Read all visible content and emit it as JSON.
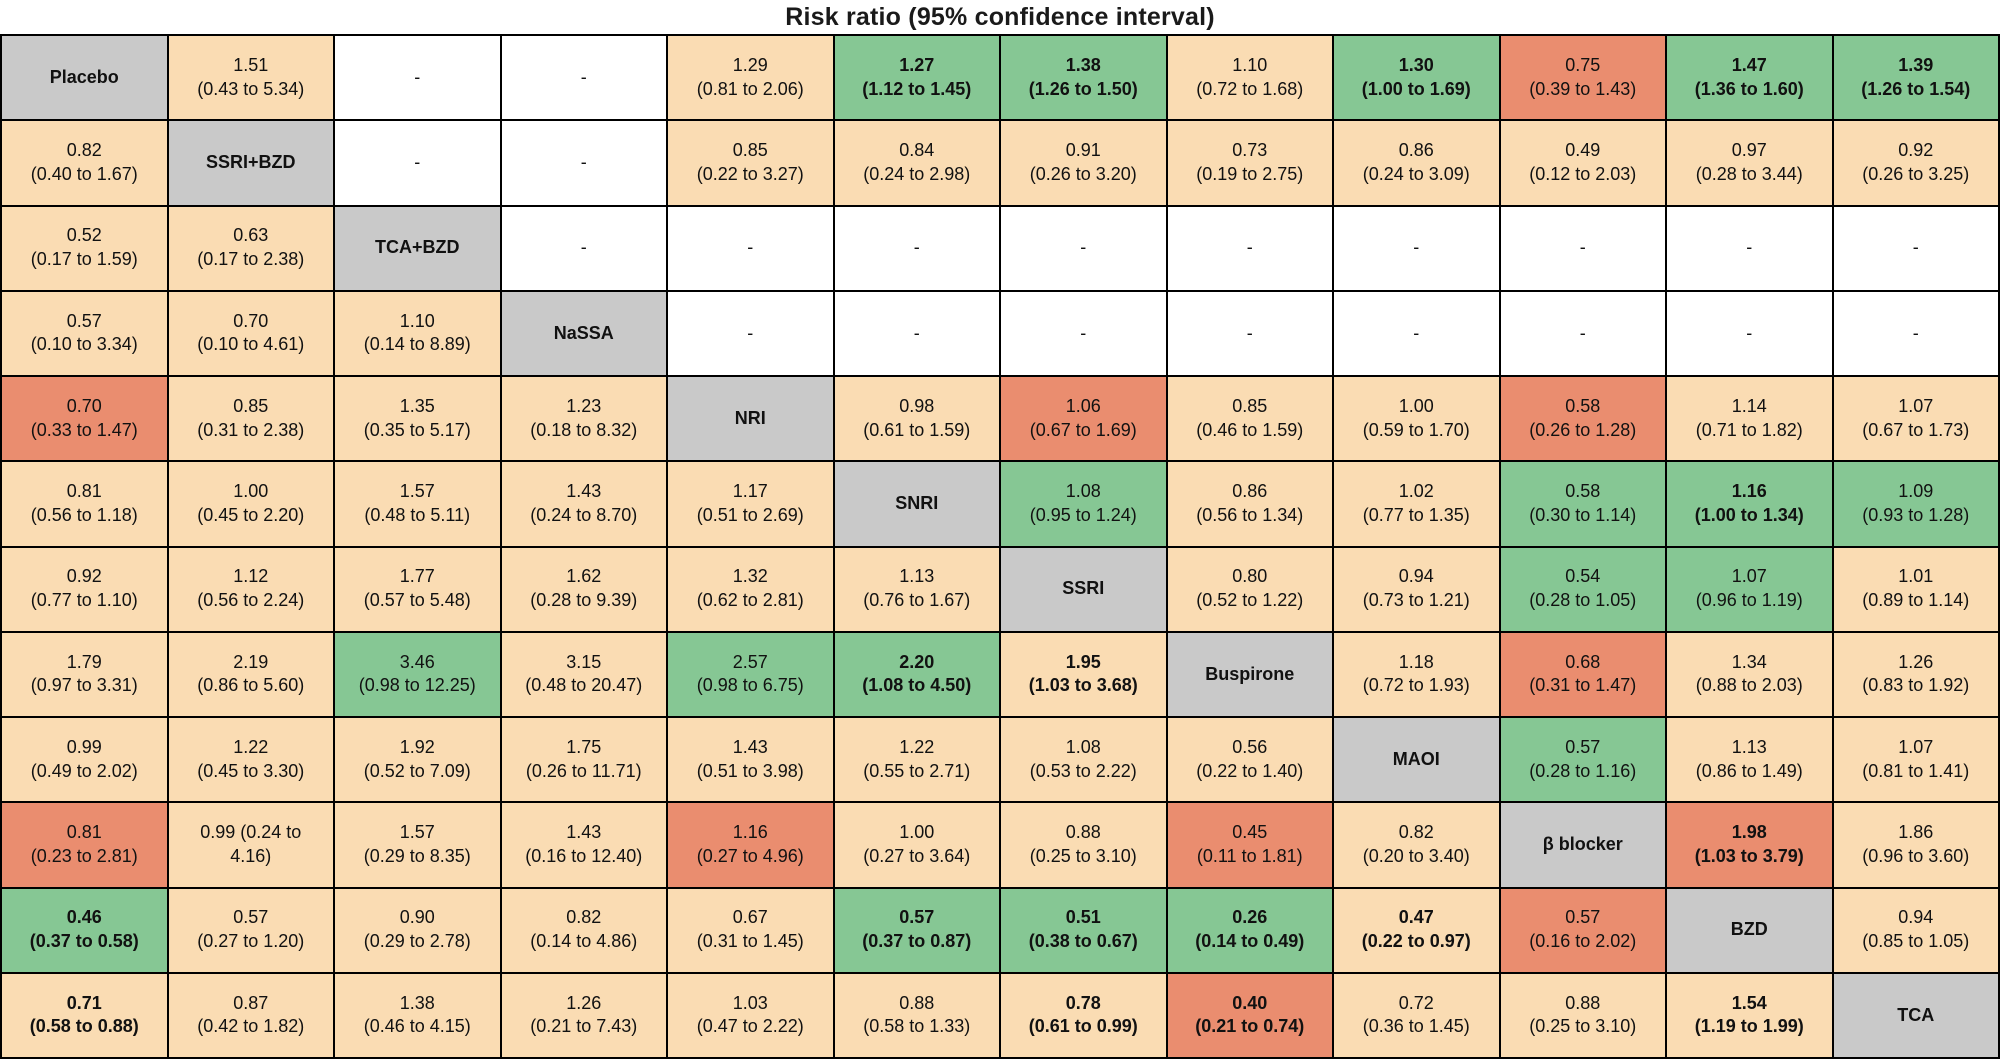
{
  "title": "Risk ratio (95% confidence interval)",
  "colors": {
    "peach": "#fadcb3",
    "green": "#86c794",
    "salmon": "#ea8d6f",
    "gray": "#c9c9c9",
    "white": "#ffffff",
    "border": "#000000"
  },
  "chart_data": {
    "type": "heatmap",
    "title": "Risk ratio (95% confidence interval)",
    "treatments": [
      "Placebo",
      "SSRI+BZD",
      "TCA+BZD",
      "NaSSA",
      "NRI",
      "SNRI",
      "SSRI",
      "Buspirone",
      "MAOI",
      "β blocker",
      "BZD",
      "TCA"
    ],
    "cell_color_classes": [
      "peach",
      "green",
      "salmon",
      "white",
      "gray"
    ],
    "rows": [
      [
        {
          "treatment": "Placebo"
        },
        {
          "rr": "1.51",
          "ci": "0.43 to 5.34",
          "color": "peach"
        },
        {
          "dash": true
        },
        {
          "dash": true
        },
        {
          "rr": "1.29",
          "ci": "0.81 to 2.06",
          "color": "peach"
        },
        {
          "rr": "1.27",
          "ci": "1.12 to 1.45",
          "color": "green",
          "bold": true
        },
        {
          "rr": "1.38",
          "ci": "1.26 to 1.50",
          "color": "green",
          "bold": true
        },
        {
          "rr": "1.10",
          "ci": "0.72 to 1.68",
          "color": "peach"
        },
        {
          "rr": "1.30",
          "ci": "1.00 to 1.69",
          "color": "green",
          "bold": true
        },
        {
          "rr": "0.75",
          "ci": "0.39 to 1.43",
          "color": "salmon"
        },
        {
          "rr": "1.47",
          "ci": "1.36 to 1.60",
          "color": "green",
          "bold": true
        },
        {
          "rr": "1.39",
          "ci": "1.26 to 1.54",
          "color": "green",
          "bold": true
        }
      ],
      [
        {
          "rr": "0.82",
          "ci": "0.40 to 1.67",
          "color": "peach"
        },
        {
          "treatment": "SSRI+BZD"
        },
        {
          "dash": true
        },
        {
          "dash": true
        },
        {
          "rr": "0.85",
          "ci": "0.22 to 3.27",
          "color": "peach"
        },
        {
          "rr": "0.84",
          "ci": "0.24 to 2.98",
          "color": "peach"
        },
        {
          "rr": "0.91",
          "ci": "0.26 to 3.20",
          "color": "peach"
        },
        {
          "rr": "0.73",
          "ci": "0.19 to 2.75",
          "color": "peach"
        },
        {
          "rr": "0.86",
          "ci": "0.24 to 3.09",
          "color": "peach"
        },
        {
          "rr": "0.49",
          "ci": "0.12 to 2.03",
          "color": "peach"
        },
        {
          "rr": "0.97",
          "ci": "0.28 to 3.44",
          "color": "peach"
        },
        {
          "rr": "0.92",
          "ci": "0.26 to 3.25",
          "color": "peach"
        }
      ],
      [
        {
          "rr": "0.52",
          "ci": "0.17 to 1.59",
          "color": "peach"
        },
        {
          "rr": "0.63",
          "ci": "0.17 to 2.38",
          "color": "peach"
        },
        {
          "treatment": "TCA+BZD"
        },
        {
          "dash": true
        },
        {
          "dash": true
        },
        {
          "dash": true
        },
        {
          "dash": true
        },
        {
          "dash": true
        },
        {
          "dash": true
        },
        {
          "dash": true
        },
        {
          "dash": true
        },
        {
          "dash": true
        }
      ],
      [
        {
          "rr": "0.57",
          "ci": "0.10 to 3.34",
          "color": "peach"
        },
        {
          "rr": "0.70",
          "ci": "0.10 to 4.61",
          "color": "peach"
        },
        {
          "rr": "1.10",
          "ci": "0.14 to 8.89",
          "color": "peach"
        },
        {
          "treatment": "NaSSA"
        },
        {
          "dash": true
        },
        {
          "dash": true
        },
        {
          "dash": true
        },
        {
          "dash": true
        },
        {
          "dash": true
        },
        {
          "dash": true
        },
        {
          "dash": true
        },
        {
          "dash": true
        }
      ],
      [
        {
          "rr": "0.70",
          "ci": "0.33 to 1.47",
          "color": "salmon"
        },
        {
          "rr": "0.85",
          "ci": "0.31 to 2.38",
          "color": "peach"
        },
        {
          "rr": "1.35",
          "ci": "0.35 to 5.17",
          "color": "peach"
        },
        {
          "rr": "1.23",
          "ci": "0.18 to 8.32",
          "color": "peach"
        },
        {
          "treatment": "NRI"
        },
        {
          "rr": "0.98",
          "ci": "0.61 to 1.59",
          "color": "peach"
        },
        {
          "rr": "1.06",
          "ci": "0.67 to 1.69",
          "color": "salmon"
        },
        {
          "rr": "0.85",
          "ci": "0.46 to 1.59",
          "color": "peach"
        },
        {
          "rr": "1.00",
          "ci": "0.59 to 1.70",
          "color": "peach"
        },
        {
          "rr": "0.58",
          "ci": "0.26 to 1.28",
          "color": "salmon"
        },
        {
          "rr": "1.14",
          "ci": "0.71 to 1.82",
          "color": "peach"
        },
        {
          "rr": "1.07",
          "ci": "0.67 to 1.73",
          "color": "peach"
        }
      ],
      [
        {
          "rr": "0.81",
          "ci": "0.56 to 1.18",
          "color": "peach"
        },
        {
          "rr": "1.00",
          "ci": "0.45 to 2.20",
          "color": "peach"
        },
        {
          "rr": "1.57",
          "ci": "0.48 to 5.11",
          "color": "peach"
        },
        {
          "rr": "1.43",
          "ci": "0.24 to 8.70",
          "color": "peach"
        },
        {
          "rr": "1.17",
          "ci": "0.51 to 2.69",
          "color": "peach"
        },
        {
          "treatment": "SNRI"
        },
        {
          "rr": "1.08",
          "ci": "0.95 to 1.24",
          "color": "green"
        },
        {
          "rr": "0.86",
          "ci": "0.56 to 1.34",
          "color": "peach"
        },
        {
          "rr": "1.02",
          "ci": "0.77 to 1.35",
          "color": "peach"
        },
        {
          "rr": "0.58",
          "ci": "0.30 to 1.14",
          "color": "green"
        },
        {
          "rr": "1.16",
          "ci": "1.00 to 1.34",
          "color": "green",
          "bold": true
        },
        {
          "rr": "1.09",
          "ci": "0.93 to 1.28",
          "color": "green"
        }
      ],
      [
        {
          "rr": "0.92",
          "ci": "0.77 to 1.10",
          "color": "peach"
        },
        {
          "rr": "1.12",
          "ci": "0.56 to 2.24",
          "color": "peach"
        },
        {
          "rr": "1.77",
          "ci": "0.57 to 5.48",
          "color": "peach"
        },
        {
          "rr": "1.62",
          "ci": "0.28 to 9.39",
          "color": "peach"
        },
        {
          "rr": "1.32",
          "ci": "0.62 to 2.81",
          "color": "peach"
        },
        {
          "rr": "1.13",
          "ci": "0.76 to 1.67",
          "color": "peach"
        },
        {
          "treatment": "SSRI"
        },
        {
          "rr": "0.80",
          "ci": "0.52 to 1.22",
          "color": "peach"
        },
        {
          "rr": "0.94",
          "ci": "0.73 to 1.21",
          "color": "peach"
        },
        {
          "rr": "0.54",
          "ci": "0.28 to 1.05",
          "color": "green"
        },
        {
          "rr": "1.07",
          "ci": "0.96 to 1.19",
          "color": "green"
        },
        {
          "rr": "1.01",
          "ci": "0.89 to 1.14",
          "color": "peach"
        }
      ],
      [
        {
          "rr": "1.79",
          "ci": "0.97 to 3.31",
          "color": "peach"
        },
        {
          "rr": "2.19",
          "ci": "0.86 to 5.60",
          "color": "peach"
        },
        {
          "rr": "3.46",
          "ci": "0.98 to 12.25",
          "color": "green"
        },
        {
          "rr": "3.15",
          "ci": "0.48 to 20.47",
          "color": "peach"
        },
        {
          "rr": "2.57",
          "ci": "0.98 to 6.75",
          "color": "green"
        },
        {
          "rr": "2.20",
          "ci": "1.08 to 4.50",
          "color": "green",
          "bold": true
        },
        {
          "rr": "1.95",
          "ci": "1.03 to 3.68",
          "color": "peach",
          "bold": true
        },
        {
          "treatment": "Buspirone"
        },
        {
          "rr": "1.18",
          "ci": "0.72 to 1.93",
          "color": "peach"
        },
        {
          "rr": "0.68",
          "ci": "0.31 to 1.47",
          "color": "salmon"
        },
        {
          "rr": "1.34",
          "ci": "0.88 to 2.03",
          "color": "peach"
        },
        {
          "rr": "1.26",
          "ci": "0.83 to 1.92",
          "color": "peach"
        }
      ],
      [
        {
          "rr": "0.99",
          "ci": "0.49 to 2.02",
          "color": "peach"
        },
        {
          "rr": "1.22",
          "ci": "0.45 to 3.30",
          "color": "peach"
        },
        {
          "rr": "1.92",
          "ci": "0.52 to 7.09",
          "color": "peach"
        },
        {
          "rr": "1.75",
          "ci": "0.26 to 11.71",
          "color": "peach"
        },
        {
          "rr": "1.43",
          "ci": "0.51 to 3.98",
          "color": "peach"
        },
        {
          "rr": "1.22",
          "ci": "0.55 to 2.71",
          "color": "peach"
        },
        {
          "rr": "1.08",
          "ci": "0.53 to 2.22",
          "color": "peach"
        },
        {
          "rr": "0.56",
          "ci": "0.22 to 1.40",
          "color": "peach"
        },
        {
          "treatment": "MAOI"
        },
        {
          "rr": "0.57",
          "ci": "0.28 to 1.16",
          "color": "green"
        },
        {
          "rr": "1.13",
          "ci": "0.86 to 1.49",
          "color": "peach"
        },
        {
          "rr": "1.07",
          "ci": "0.81 to 1.41",
          "color": "peach"
        }
      ],
      [
        {
          "rr": "0.81",
          "ci": "0.23 to 2.81",
          "color": "salmon"
        },
        {
          "rr": "0.99",
          "ci": "0.24 to 4.16",
          "color": "peach",
          "inline": true
        },
        {
          "rr": "1.57",
          "ci": "0.29 to 8.35",
          "color": "peach"
        },
        {
          "rr": "1.43",
          "ci": "0.16 to 12.40",
          "color": "peach"
        },
        {
          "rr": "1.16",
          "ci": "0.27 to 4.96",
          "color": "salmon"
        },
        {
          "rr": "1.00",
          "ci": "0.27 to 3.64",
          "color": "peach"
        },
        {
          "rr": "0.88",
          "ci": "0.25 to 3.10",
          "color": "peach"
        },
        {
          "rr": "0.45",
          "ci": "0.11 to 1.81",
          "color": "salmon"
        },
        {
          "rr": "0.82",
          "ci": "0.20 to 3.40",
          "color": "peach"
        },
        {
          "treatment": "β blocker"
        },
        {
          "rr": "1.98",
          "ci": "1.03 to 3.79",
          "color": "salmon",
          "bold": true
        },
        {
          "rr": "1.86",
          "ci": "0.96 to 3.60",
          "color": "peach"
        }
      ],
      [
        {
          "rr": "0.46",
          "ci": "0.37 to 0.58",
          "color": "green",
          "bold": true
        },
        {
          "rr": "0.57",
          "ci": "0.27 to 1.20",
          "color": "peach"
        },
        {
          "rr": "0.90",
          "ci": "0.29 to 2.78",
          "color": "peach"
        },
        {
          "rr": "0.82",
          "ci": "0.14 to 4.86",
          "color": "peach"
        },
        {
          "rr": "0.67",
          "ci": "0.31 to 1.45",
          "color": "peach"
        },
        {
          "rr": "0.57",
          "ci": "0.37 to 0.87",
          "color": "green",
          "bold": true
        },
        {
          "rr": "0.51",
          "ci": "0.38 to 0.67",
          "color": "green",
          "bold": true
        },
        {
          "rr": "0.26",
          "ci": "0.14 to 0.49",
          "color": "green",
          "bold": true
        },
        {
          "rr": "0.47",
          "ci": "0.22 to 0.97",
          "color": "peach",
          "bold": true
        },
        {
          "rr": "0.57",
          "ci": "0.16 to 2.02",
          "color": "salmon"
        },
        {
          "treatment": "BZD"
        },
        {
          "rr": "0.94",
          "ci": "0.85 to 1.05",
          "color": "peach"
        }
      ],
      [
        {
          "rr": "0.71",
          "ci": "0.58 to 0.88",
          "color": "peach",
          "bold": true
        },
        {
          "rr": "0.87",
          "ci": "0.42 to 1.82",
          "color": "peach"
        },
        {
          "rr": "1.38",
          "ci": "0.46 to 4.15",
          "color": "peach"
        },
        {
          "rr": "1.26",
          "ci": "0.21 to 7.43",
          "color": "peach"
        },
        {
          "rr": "1.03",
          "ci": "0.47 to 2.22",
          "color": "peach"
        },
        {
          "rr": "0.88",
          "ci": "0.58 to 1.33",
          "color": "peach"
        },
        {
          "rr": "0.78",
          "ci": "0.61 to 0.99",
          "color": "peach",
          "bold": true
        },
        {
          "rr": "0.40",
          "ci": "0.21 to 0.74",
          "color": "salmon",
          "bold": true
        },
        {
          "rr": "0.72",
          "ci": "0.36 to 1.45",
          "color": "peach"
        },
        {
          "rr": "0.88",
          "ci": "0.25 to 3.10",
          "color": "peach"
        },
        {
          "rr": "1.54",
          "ci": "1.19 to 1.99",
          "color": "peach",
          "bold": true
        },
        {
          "treatment": "TCA"
        }
      ]
    ],
    "empty_cell_symbol": "-"
  }
}
